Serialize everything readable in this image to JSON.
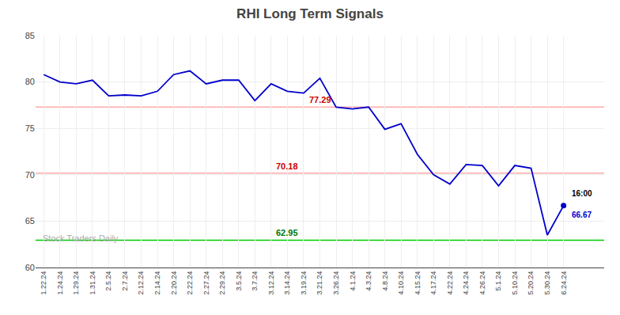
{
  "chart_data": {
    "type": "line",
    "title": "RHI Long Term Signals",
    "categories": [
      "1.22.24",
      "1.24.24",
      "1.29.24",
      "1.31.24",
      "2.5.24",
      "2.7.24",
      "2.12.24",
      "2.14.24",
      "2.20.24",
      "2.22.24",
      "2.27.24",
      "2.29.24",
      "3.5.24",
      "3.7.24",
      "3.12.24",
      "3.14.24",
      "3.19.24",
      "3.21.24",
      "3.26.24",
      "4.1.24",
      "4.3.24",
      "4.8.24",
      "4.10.24",
      "4.15.24",
      "4.17.24",
      "4.22.24",
      "4.24.24",
      "4.26.24",
      "5.1.24",
      "5.10.24",
      "5.20.24",
      "5.30.24",
      "6.24.24"
    ],
    "values": [
      80.8,
      80.0,
      79.8,
      80.2,
      78.5,
      78.6,
      78.5,
      79.0,
      80.8,
      81.2,
      79.8,
      80.2,
      80.2,
      78.0,
      79.8,
      79.0,
      78.8,
      80.4,
      77.29,
      77.1,
      77.3,
      74.9,
      75.5,
      72.2,
      70.0,
      69.0,
      71.1,
      71.0,
      68.8,
      71.0,
      70.7,
      63.5,
      66.67
    ],
    "color": "#0000cc",
    "ylim": [
      60,
      85
    ],
    "yticks": [
      60,
      65,
      70,
      75,
      80,
      85
    ],
    "grid": true,
    "hlines": [
      {
        "value": 77.29,
        "label": "77.29",
        "color": "#ffaaaa",
        "label_color": "#cc0000",
        "at": "3.21.24"
      },
      {
        "value": 70.18,
        "label": "70.18",
        "color": "#ffaaaa",
        "label_color": "#cc0000",
        "at": "3.14.24"
      },
      {
        "value": 62.95,
        "label": "62.95",
        "color": "#00cc00",
        "label_color": "#007700",
        "at": "3.14.24"
      }
    ],
    "annotations": [
      {
        "text": "16:00",
        "color": "#000000"
      },
      {
        "text": "66.67",
        "color": "#0000cc"
      }
    ],
    "watermark": {
      "text": "Stock Traders Daily",
      "color": "#aaaaaa"
    }
  }
}
